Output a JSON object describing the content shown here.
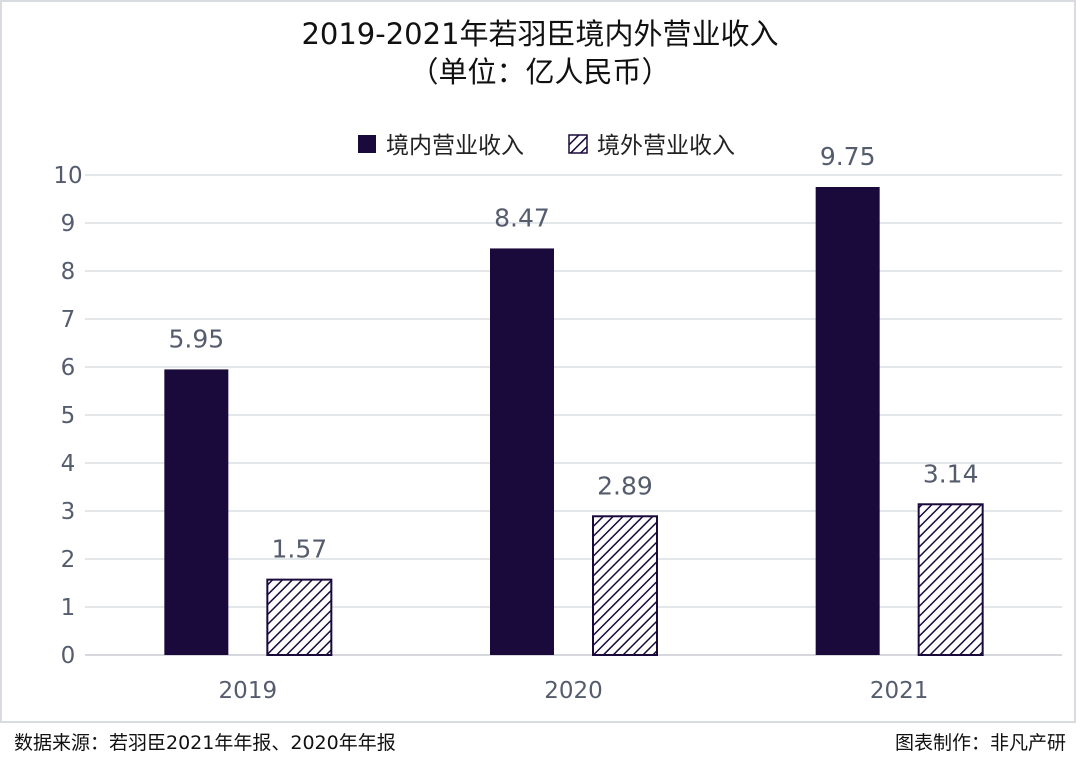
{
  "chart_data": {
    "type": "bar",
    "title": "2019-2021年若羽臣境内外营业收入",
    "subtitle": "（单位：亿人民币）",
    "categories": [
      "2019",
      "2020",
      "2021"
    ],
    "series": [
      {
        "name": "境内营业收入",
        "values": [
          5.95,
          8.47,
          9.75
        ],
        "color": "#1a0a3c",
        "pattern": "solid"
      },
      {
        "name": "境外营业收入",
        "values": [
          1.57,
          2.89,
          3.14
        ],
        "color": "#1a0a3c",
        "pattern": "diagonal-hatch"
      }
    ],
    "yticks": [
      0,
      1,
      2,
      3,
      4,
      5,
      6,
      7,
      8,
      9,
      10
    ],
    "ylim": [
      0,
      10
    ],
    "grid": true,
    "legend": "top"
  },
  "footer": {
    "source": "数据来源：若羽臣2021年年报、2020年年报",
    "credit": "图表制作：非凡产研"
  }
}
